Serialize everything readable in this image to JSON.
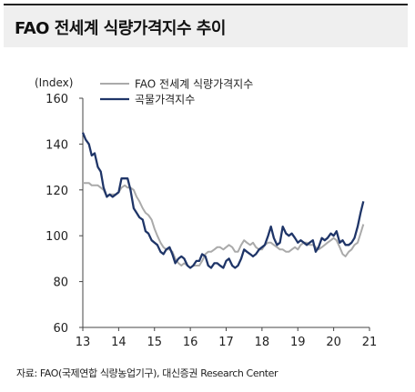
{
  "title": "FAO 전세계 식량가격지수 추이",
  "source": "자료: FAO(국제연합 식량농업기구), 대신증권 Research Center",
  "colors": {
    "fao": "#aaaaaa",
    "cereal": "#1f3568",
    "title_bg": "#efefef"
  },
  "chart_data": {
    "type": "line",
    "ylabel": "(Index)",
    "ylim": [
      60,
      160
    ],
    "yticks": [
      60,
      80,
      100,
      120,
      140,
      160
    ],
    "xlim": [
      2013,
      2021
    ],
    "xticks": [
      2013,
      2014,
      2015,
      2016,
      2017,
      2018,
      2019,
      2020,
      2021
    ],
    "xtick_labels": [
      "13",
      "14",
      "15",
      "16",
      "17",
      "18",
      "19",
      "20",
      "21"
    ],
    "grid": false,
    "legend_position": "top-right",
    "series": [
      {
        "name": "FAO 전세계 식량가격지수",
        "color": "#aaaaaa",
        "x": [
          2013.0,
          2013.08,
          2013.17,
          2013.25,
          2013.33,
          2013.42,
          2013.5,
          2013.58,
          2013.67,
          2013.75,
          2013.83,
          2013.92,
          2014.0,
          2014.08,
          2014.17,
          2014.25,
          2014.33,
          2014.42,
          2014.5,
          2014.58,
          2014.67,
          2014.75,
          2014.83,
          2014.92,
          2015.0,
          2015.08,
          2015.17,
          2015.25,
          2015.33,
          2015.42,
          2015.5,
          2015.58,
          2015.67,
          2015.75,
          2015.83,
          2015.92,
          2016.0,
          2016.08,
          2016.17,
          2016.25,
          2016.33,
          2016.42,
          2016.5,
          2016.58,
          2016.67,
          2016.75,
          2016.83,
          2016.92,
          2017.0,
          2017.08,
          2017.17,
          2017.25,
          2017.33,
          2017.42,
          2017.5,
          2017.58,
          2017.67,
          2017.75,
          2017.83,
          2017.92,
          2018.0,
          2018.08,
          2018.17,
          2018.25,
          2018.33,
          2018.42,
          2018.5,
          2018.58,
          2018.67,
          2018.75,
          2018.83,
          2018.92,
          2019.0,
          2019.08,
          2019.17,
          2019.25,
          2019.33,
          2019.42,
          2019.5,
          2019.58,
          2019.67,
          2019.75,
          2019.83,
          2019.92,
          2020.0,
          2020.08,
          2020.17,
          2020.25,
          2020.33,
          2020.42,
          2020.5,
          2020.58,
          2020.67,
          2020.75,
          2020.83
        ],
        "values": [
          123,
          123,
          123,
          122,
          122,
          122,
          121,
          120,
          117,
          118,
          118,
          118,
          119,
          121,
          122,
          121,
          121,
          120,
          117,
          115,
          112,
          110,
          109,
          107,
          103,
          100,
          97,
          95,
          94,
          94,
          93,
          90,
          88,
          87,
          88,
          87,
          86,
          87,
          87,
          87,
          89,
          92,
          93,
          93,
          94,
          95,
          95,
          94,
          95,
          96,
          95,
          93,
          93,
          96,
          98,
          97,
          96,
          97,
          95,
          94,
          94,
          96,
          97,
          97,
          96,
          95,
          94,
          94,
          93,
          93,
          94,
          95,
          94,
          96,
          97,
          97,
          96,
          96,
          95,
          94,
          95,
          96,
          97,
          98,
          99,
          98,
          95,
          92,
          91,
          93,
          94,
          96,
          97,
          101,
          105
        ]
      },
      {
        "name": "곡물가격지수",
        "color": "#1f3568",
        "x": [
          2013.0,
          2013.08,
          2013.17,
          2013.25,
          2013.33,
          2013.42,
          2013.5,
          2013.58,
          2013.67,
          2013.75,
          2013.83,
          2013.92,
          2014.0,
          2014.08,
          2014.17,
          2014.25,
          2014.33,
          2014.42,
          2014.5,
          2014.58,
          2014.67,
          2014.75,
          2014.83,
          2014.92,
          2015.0,
          2015.08,
          2015.17,
          2015.25,
          2015.33,
          2015.42,
          2015.5,
          2015.58,
          2015.67,
          2015.75,
          2015.83,
          2015.92,
          2016.0,
          2016.08,
          2016.17,
          2016.25,
          2016.33,
          2016.42,
          2016.5,
          2016.58,
          2016.67,
          2016.75,
          2016.83,
          2016.92,
          2017.0,
          2017.08,
          2017.17,
          2017.25,
          2017.33,
          2017.42,
          2017.5,
          2017.58,
          2017.67,
          2017.75,
          2017.83,
          2017.92,
          2018.0,
          2018.08,
          2018.17,
          2018.25,
          2018.33,
          2018.42,
          2018.5,
          2018.58,
          2018.67,
          2018.75,
          2018.83,
          2018.92,
          2019.0,
          2019.08,
          2019.17,
          2019.25,
          2019.33,
          2019.42,
          2019.5,
          2019.58,
          2019.67,
          2019.75,
          2019.83,
          2019.92,
          2020.0,
          2020.08,
          2020.17,
          2020.25,
          2020.33,
          2020.42,
          2020.5,
          2020.58,
          2020.67,
          2020.75,
          2020.83
        ],
        "values": [
          145,
          142,
          140,
          135,
          136,
          130,
          128,
          121,
          117,
          118,
          117,
          118,
          119,
          125,
          125,
          125,
          120,
          112,
          110,
          108,
          107,
          102,
          101,
          98,
          97,
          96,
          93,
          92,
          94,
          95,
          92,
          88,
          90,
          91,
          90,
          87,
          86,
          87,
          89,
          89,
          92,
          91,
          87,
          86,
          88,
          88,
          87,
          86,
          89,
          90,
          87,
          86,
          87,
          90,
          94,
          93,
          92,
          91,
          92,
          94,
          95,
          96,
          100,
          104,
          99,
          96,
          97,
          104,
          101,
          100,
          101,
          99,
          97,
          98,
          97,
          96,
          97,
          98,
          93,
          95,
          99,
          98,
          99,
          101,
          100,
          102,
          97,
          98,
          96,
          96,
          97,
          99,
          104,
          110,
          115
        ]
      }
    ]
  }
}
